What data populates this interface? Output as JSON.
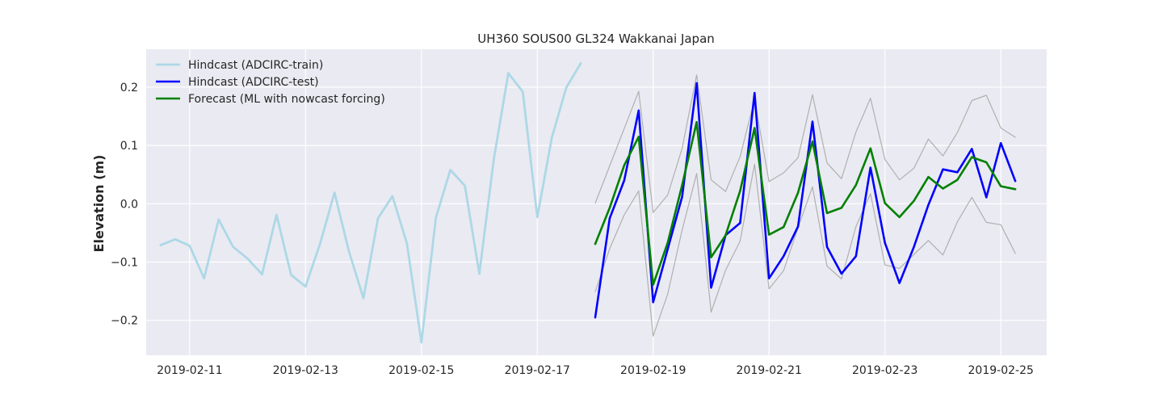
{
  "chart_data": {
    "type": "line",
    "title": "UH360 SOUS00 GL324 Wakkanai Japan",
    "xlabel": "",
    "ylabel": "Elevation (m)",
    "x_type": "datetime",
    "xlim": [
      "2019-02-10T06:00",
      "2019-02-25T19:00"
    ],
    "ylim": [
      -0.26,
      0.265
    ],
    "x_ticks": [
      "2019-02-11",
      "2019-02-13",
      "2019-02-15",
      "2019-02-17",
      "2019-02-19",
      "2019-02-21",
      "2019-02-23",
      "2019-02-25"
    ],
    "y_ticks": [
      -0.2,
      -0.1,
      0.0,
      0.1,
      0.2
    ],
    "y_tick_labels": [
      "−0.2",
      "−0.1",
      "0.0",
      "0.1",
      "0.2"
    ],
    "grid": true,
    "background": "#eaeaf2",
    "legend_position": "upper-left",
    "series": [
      {
        "name": "Hindcast (ADCIRC-train)",
        "color": "#add8e6",
        "width": 2.8,
        "in_legend": true,
        "points": [
          [
            "2019-02-10T12:00",
            -0.071
          ],
          [
            "2019-02-10T18:00",
            -0.061
          ],
          [
            "2019-02-11T00:00",
            -0.072
          ],
          [
            "2019-02-11T06:00",
            -0.128
          ],
          [
            "2019-02-11T12:00",
            -0.027
          ],
          [
            "2019-02-11T18:00",
            -0.074
          ],
          [
            "2019-02-12T00:00",
            -0.094
          ],
          [
            "2019-02-12T06:00",
            -0.121
          ],
          [
            "2019-02-12T12:00",
            -0.019
          ],
          [
            "2019-02-12T18:00",
            -0.122
          ],
          [
            "2019-02-13T00:00",
            -0.142
          ],
          [
            "2019-02-13T06:00",
            -0.069
          ],
          [
            "2019-02-13T12:00",
            0.019
          ],
          [
            "2019-02-13T18:00",
            -0.082
          ],
          [
            "2019-02-14T00:00",
            -0.162
          ],
          [
            "2019-02-14T06:00",
            -0.025
          ],
          [
            "2019-02-14T12:00",
            0.013
          ],
          [
            "2019-02-14T18:00",
            -0.068
          ],
          [
            "2019-02-15T00:00",
            -0.238
          ],
          [
            "2019-02-15T06:00",
            -0.024
          ],
          [
            "2019-02-15T12:00",
            0.058
          ],
          [
            "2019-02-15T18:00",
            0.031
          ],
          [
            "2019-02-16T00:00",
            -0.12
          ],
          [
            "2019-02-16T06:00",
            0.077
          ],
          [
            "2019-02-16T12:00",
            0.224
          ],
          [
            "2019-02-16T18:00",
            0.192
          ],
          [
            "2019-02-17T00:00",
            -0.023
          ],
          [
            "2019-02-17T06:00",
            0.113
          ],
          [
            "2019-02-17T12:00",
            0.199
          ],
          [
            "2019-02-17T18:00",
            0.241
          ]
        ]
      },
      {
        "name": "upper band",
        "color": "#b0b0b0",
        "width": 1.2,
        "in_legend": false,
        "points": [
          [
            "2019-02-18T00:00",
            0.001
          ],
          [
            "2019-02-18T06:00",
            0.065
          ],
          [
            "2019-02-18T12:00",
            0.129
          ],
          [
            "2019-02-18T18:00",
            0.193
          ],
          [
            "2019-02-19T00:00",
            -0.015
          ],
          [
            "2019-02-19T06:00",
            0.015
          ],
          [
            "2019-02-19T12:00",
            0.095
          ],
          [
            "2019-02-19T18:00",
            0.221
          ],
          [
            "2019-02-20T00:00",
            0.041
          ],
          [
            "2019-02-20T06:00",
            0.021
          ],
          [
            "2019-02-20T12:00",
            0.081
          ],
          [
            "2019-02-20T18:00",
            0.179
          ],
          [
            "2019-02-21T00:00",
            0.038
          ],
          [
            "2019-02-21T06:00",
            0.053
          ],
          [
            "2019-02-21T12:00",
            0.079
          ],
          [
            "2019-02-21T18:00",
            0.187
          ],
          [
            "2019-02-22T00:00",
            0.07
          ],
          [
            "2019-02-22T06:00",
            0.043
          ],
          [
            "2019-02-22T12:00",
            0.123
          ],
          [
            "2019-02-22T18:00",
            0.181
          ],
          [
            "2019-02-23T00:00",
            0.076
          ],
          [
            "2019-02-23T06:00",
            0.041
          ],
          [
            "2019-02-23T12:00",
            0.061
          ],
          [
            "2019-02-23T18:00",
            0.111
          ],
          [
            "2019-02-24T00:00",
            0.082
          ],
          [
            "2019-02-24T06:00",
            0.122
          ],
          [
            "2019-02-24T12:00",
            0.177
          ],
          [
            "2019-02-24T18:00",
            0.186
          ],
          [
            "2019-02-25T00:00",
            0.13
          ],
          [
            "2019-02-25T06:00",
            0.114
          ]
        ]
      },
      {
        "name": "lower band",
        "color": "#b0b0b0",
        "width": 1.2,
        "in_legend": false,
        "points": [
          [
            "2019-02-18T00:00",
            -0.151
          ],
          [
            "2019-02-18T06:00",
            -0.077
          ],
          [
            "2019-02-18T12:00",
            -0.019
          ],
          [
            "2019-02-18T18:00",
            0.022
          ],
          [
            "2019-02-19T00:00",
            -0.227
          ],
          [
            "2019-02-19T06:00",
            -0.155
          ],
          [
            "2019-02-19T12:00",
            -0.045
          ],
          [
            "2019-02-19T18:00",
            0.052
          ],
          [
            "2019-02-20T00:00",
            -0.186
          ],
          [
            "2019-02-20T06:00",
            -0.114
          ],
          [
            "2019-02-20T12:00",
            -0.064
          ],
          [
            "2019-02-20T18:00",
            0.068
          ],
          [
            "2019-02-21T00:00",
            -0.146
          ],
          [
            "2019-02-21T06:00",
            -0.115
          ],
          [
            "2019-02-21T12:00",
            -0.041
          ],
          [
            "2019-02-21T18:00",
            0.029
          ],
          [
            "2019-02-22T00:00",
            -0.107
          ],
          [
            "2019-02-22T06:00",
            -0.129
          ],
          [
            "2019-02-22T12:00",
            -0.039
          ],
          [
            "2019-02-22T18:00",
            0.017
          ],
          [
            "2019-02-23T00:00",
            -0.105
          ],
          [
            "2019-02-23T06:00",
            -0.111
          ],
          [
            "2019-02-23T12:00",
            -0.087
          ],
          [
            "2019-02-23T18:00",
            -0.063
          ],
          [
            "2019-02-24T00:00",
            -0.088
          ],
          [
            "2019-02-24T06:00",
            -0.031
          ],
          [
            "2019-02-24T12:00",
            0.011
          ],
          [
            "2019-02-24T18:00",
            -0.032
          ],
          [
            "2019-02-25T00:00",
            -0.036
          ],
          [
            "2019-02-25T06:00",
            -0.085
          ]
        ]
      },
      {
        "name": "Hindcast (ADCIRC-test)",
        "color": "#0000ff",
        "width": 2.6,
        "in_legend": true,
        "points": [
          [
            "2019-02-18T00:00",
            -0.195
          ],
          [
            "2019-02-18T06:00",
            -0.025
          ],
          [
            "2019-02-18T12:00",
            0.04
          ],
          [
            "2019-02-18T18:00",
            0.16
          ],
          [
            "2019-02-19T00:00",
            -0.169
          ],
          [
            "2019-02-19T06:00",
            -0.078
          ],
          [
            "2019-02-19T12:00",
            0.012
          ],
          [
            "2019-02-19T18:00",
            0.207
          ],
          [
            "2019-02-20T00:00",
            -0.144
          ],
          [
            "2019-02-20T06:00",
            -0.054
          ],
          [
            "2019-02-20T12:00",
            -0.033
          ],
          [
            "2019-02-20T18:00",
            0.19
          ],
          [
            "2019-02-21T00:00",
            -0.128
          ],
          [
            "2019-02-21T06:00",
            -0.09
          ],
          [
            "2019-02-21T12:00",
            -0.039
          ],
          [
            "2019-02-21T18:00",
            0.141
          ],
          [
            "2019-02-22T00:00",
            -0.074
          ],
          [
            "2019-02-22T06:00",
            -0.12
          ],
          [
            "2019-02-22T12:00",
            -0.09
          ],
          [
            "2019-02-22T18:00",
            0.062
          ],
          [
            "2019-02-23T00:00",
            -0.067
          ],
          [
            "2019-02-23T06:00",
            -0.136
          ],
          [
            "2019-02-23T12:00",
            -0.074
          ],
          [
            "2019-02-23T18:00",
            -0.002
          ],
          [
            "2019-02-24T00:00",
            0.059
          ],
          [
            "2019-02-24T06:00",
            0.054
          ],
          [
            "2019-02-24T12:00",
            0.094
          ],
          [
            "2019-02-24T18:00",
            0.011
          ],
          [
            "2019-02-25T00:00",
            0.104
          ],
          [
            "2019-02-25T06:00",
            0.039
          ]
        ]
      },
      {
        "name": "Forecast (ML with nowcast forcing)",
        "color": "#008000",
        "width": 2.6,
        "in_legend": true,
        "points": [
          [
            "2019-02-18T00:00",
            -0.069
          ],
          [
            "2019-02-18T06:00",
            -0.007
          ],
          [
            "2019-02-18T12:00",
            0.066
          ],
          [
            "2019-02-18T18:00",
            0.115
          ],
          [
            "2019-02-19T00:00",
            -0.139
          ],
          [
            "2019-02-19T06:00",
            -0.067
          ],
          [
            "2019-02-19T12:00",
            0.032
          ],
          [
            "2019-02-19T18:00",
            0.14
          ],
          [
            "2019-02-20T00:00",
            -0.092
          ],
          [
            "2019-02-20T06:00",
            -0.054
          ],
          [
            "2019-02-20T12:00",
            0.022
          ],
          [
            "2019-02-20T18:00",
            0.13
          ],
          [
            "2019-02-21T00:00",
            -0.053
          ],
          [
            "2019-02-21T06:00",
            -0.04
          ],
          [
            "2019-02-21T12:00",
            0.019
          ],
          [
            "2019-02-21T18:00",
            0.107
          ],
          [
            "2019-02-22T00:00",
            -0.016
          ],
          [
            "2019-02-22T06:00",
            -0.007
          ],
          [
            "2019-02-22T12:00",
            0.032
          ],
          [
            "2019-02-22T18:00",
            0.095
          ],
          [
            "2019-02-23T00:00",
            0.001
          ],
          [
            "2019-02-23T06:00",
            -0.023
          ],
          [
            "2019-02-23T12:00",
            0.005
          ],
          [
            "2019-02-23T18:00",
            0.046
          ],
          [
            "2019-02-24T00:00",
            0.026
          ],
          [
            "2019-02-24T06:00",
            0.041
          ],
          [
            "2019-02-24T12:00",
            0.08
          ],
          [
            "2019-02-24T18:00",
            0.071
          ],
          [
            "2019-02-25T00:00",
            0.03
          ],
          [
            "2019-02-25T06:00",
            0.025
          ]
        ]
      }
    ]
  }
}
